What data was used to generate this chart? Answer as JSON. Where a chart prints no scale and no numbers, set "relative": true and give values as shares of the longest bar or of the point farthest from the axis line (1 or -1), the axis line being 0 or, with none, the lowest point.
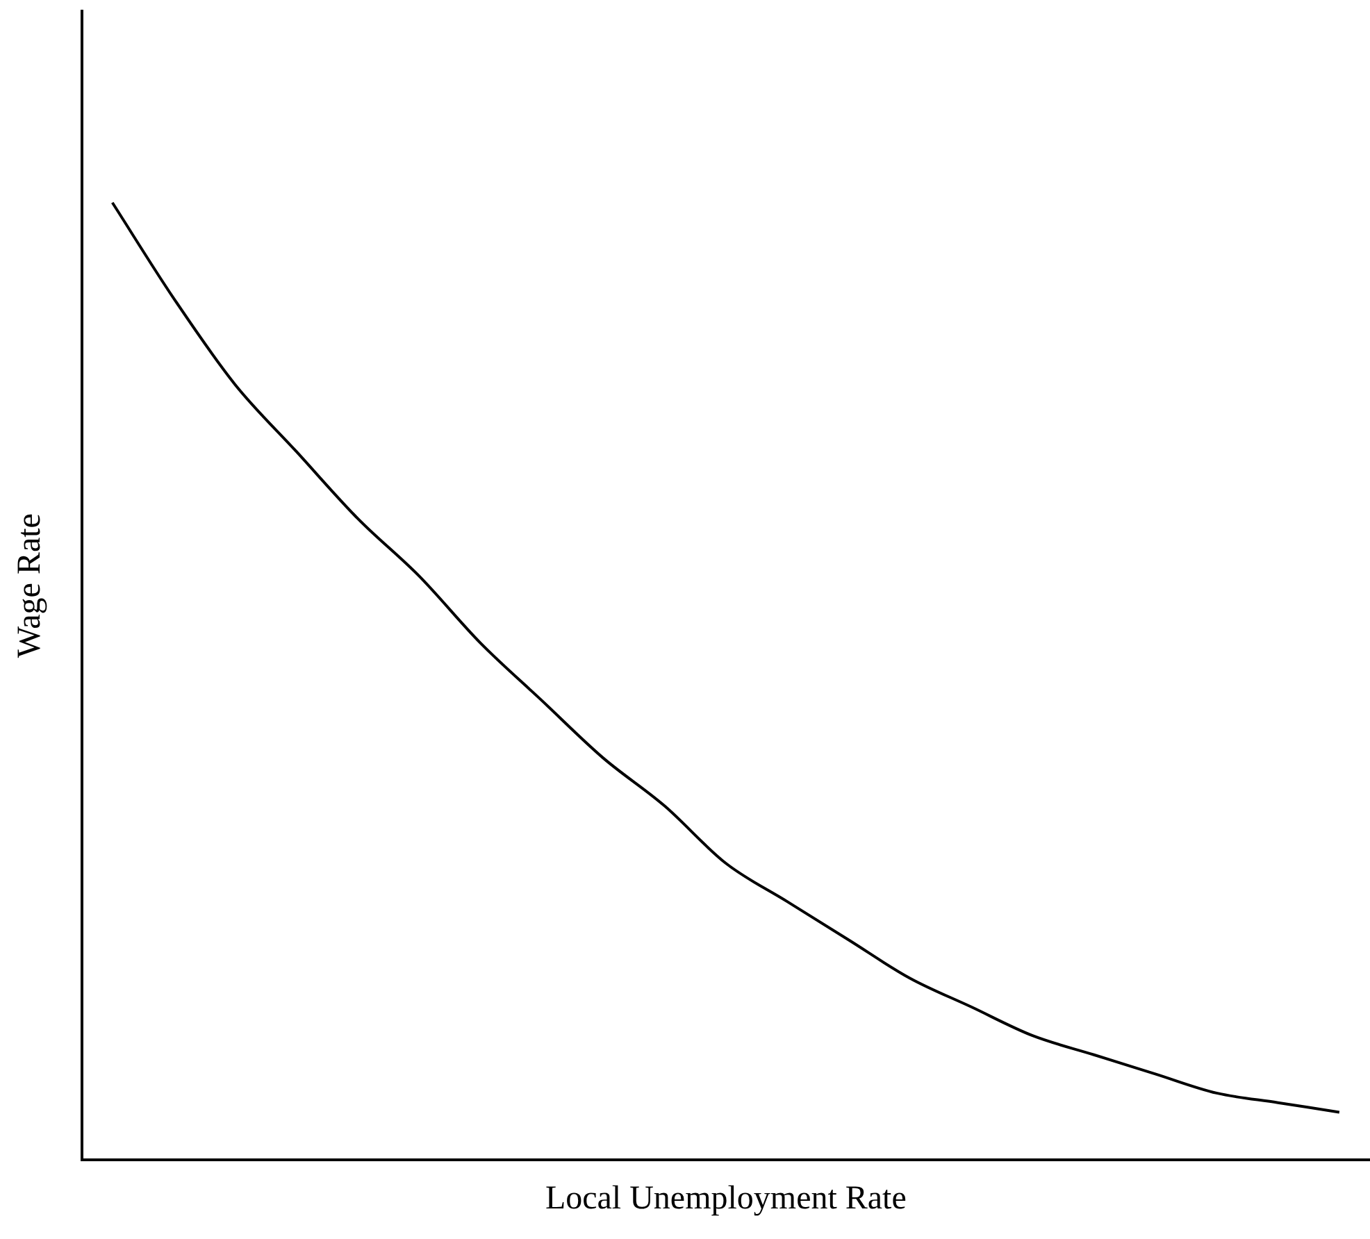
{
  "chart_data": {
    "type": "line",
    "relative": true,
    "xlabel": "Local Unemployment Rate",
    "ylabel": "Wage Rate",
    "color": "#000000",
    "marker": "none",
    "legend": false,
    "grid": false,
    "tick_labels": false,
    "categories": [
      null,
      null,
      null,
      null,
      null,
      null,
      null,
      null,
      null,
      null,
      null,
      null,
      null,
      null,
      null,
      null,
      null,
      null,
      null,
      null,
      null
    ],
    "values": [
      1,
      0.9,
      0.81,
      0.74,
      0.67,
      0.61,
      0.54,
      0.48,
      0.42,
      0.37,
      0.31,
      0.27,
      0.23,
      0.19,
      0.16,
      0.13,
      0.11,
      0.09,
      0.07,
      0.06,
      0.05
    ]
  }
}
